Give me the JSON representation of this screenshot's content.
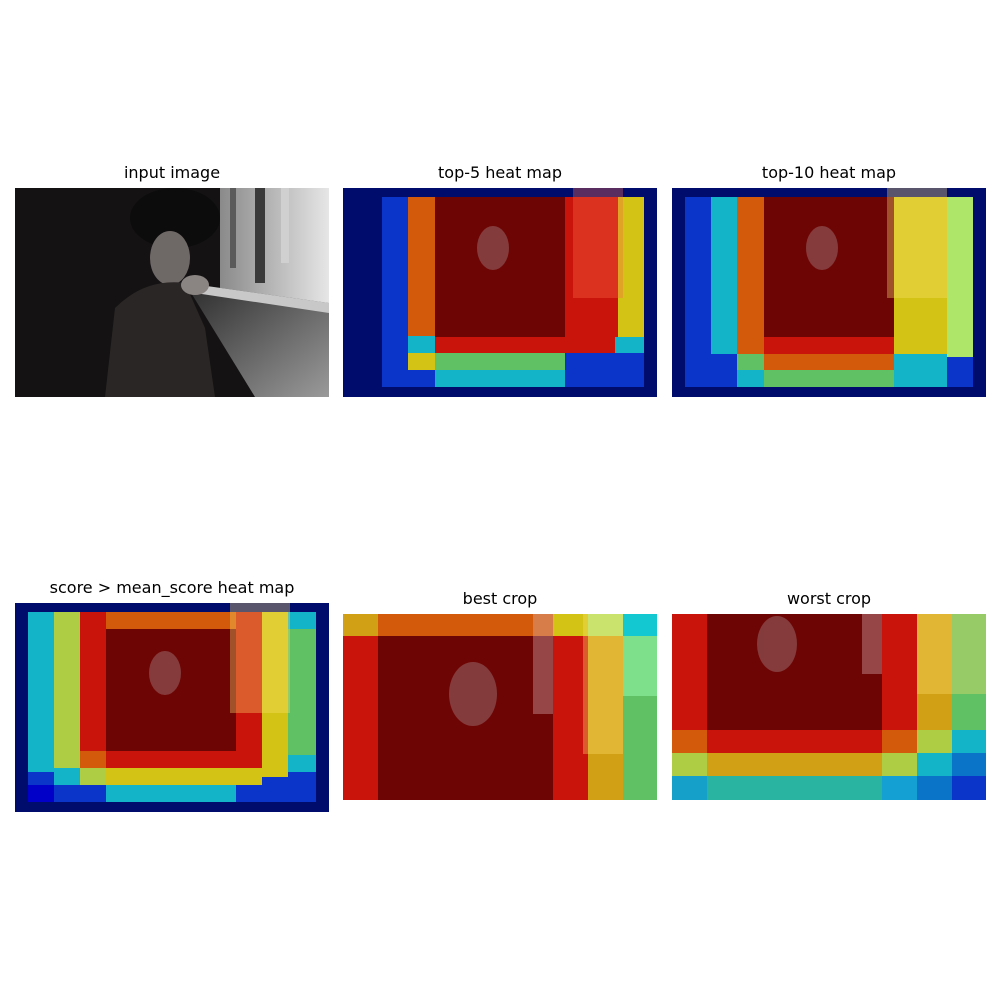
{
  "panels": [
    {
      "key": "input",
      "title": "input image"
    },
    {
      "key": "top5",
      "title": "top-5 heat map"
    },
    {
      "key": "top10",
      "title": "top-10 heat map"
    },
    {
      "key": "mean",
      "title": "score > mean_score heat map"
    },
    {
      "key": "best",
      "title": "best crop"
    },
    {
      "key": "worst",
      "title": "worst crop"
    }
  ],
  "colors": {
    "background": "#ffffff",
    "heat_dark_blue": "#000c6b",
    "heat_blue": "#0a35c8",
    "heat_cyan": "#14b4c8",
    "heat_green": "#5fc064",
    "heat_yellow": "#d2c314",
    "heat_orange": "#d25a0a",
    "heat_red": "#c8140a",
    "heat_dark_red": "#6e0505"
  }
}
